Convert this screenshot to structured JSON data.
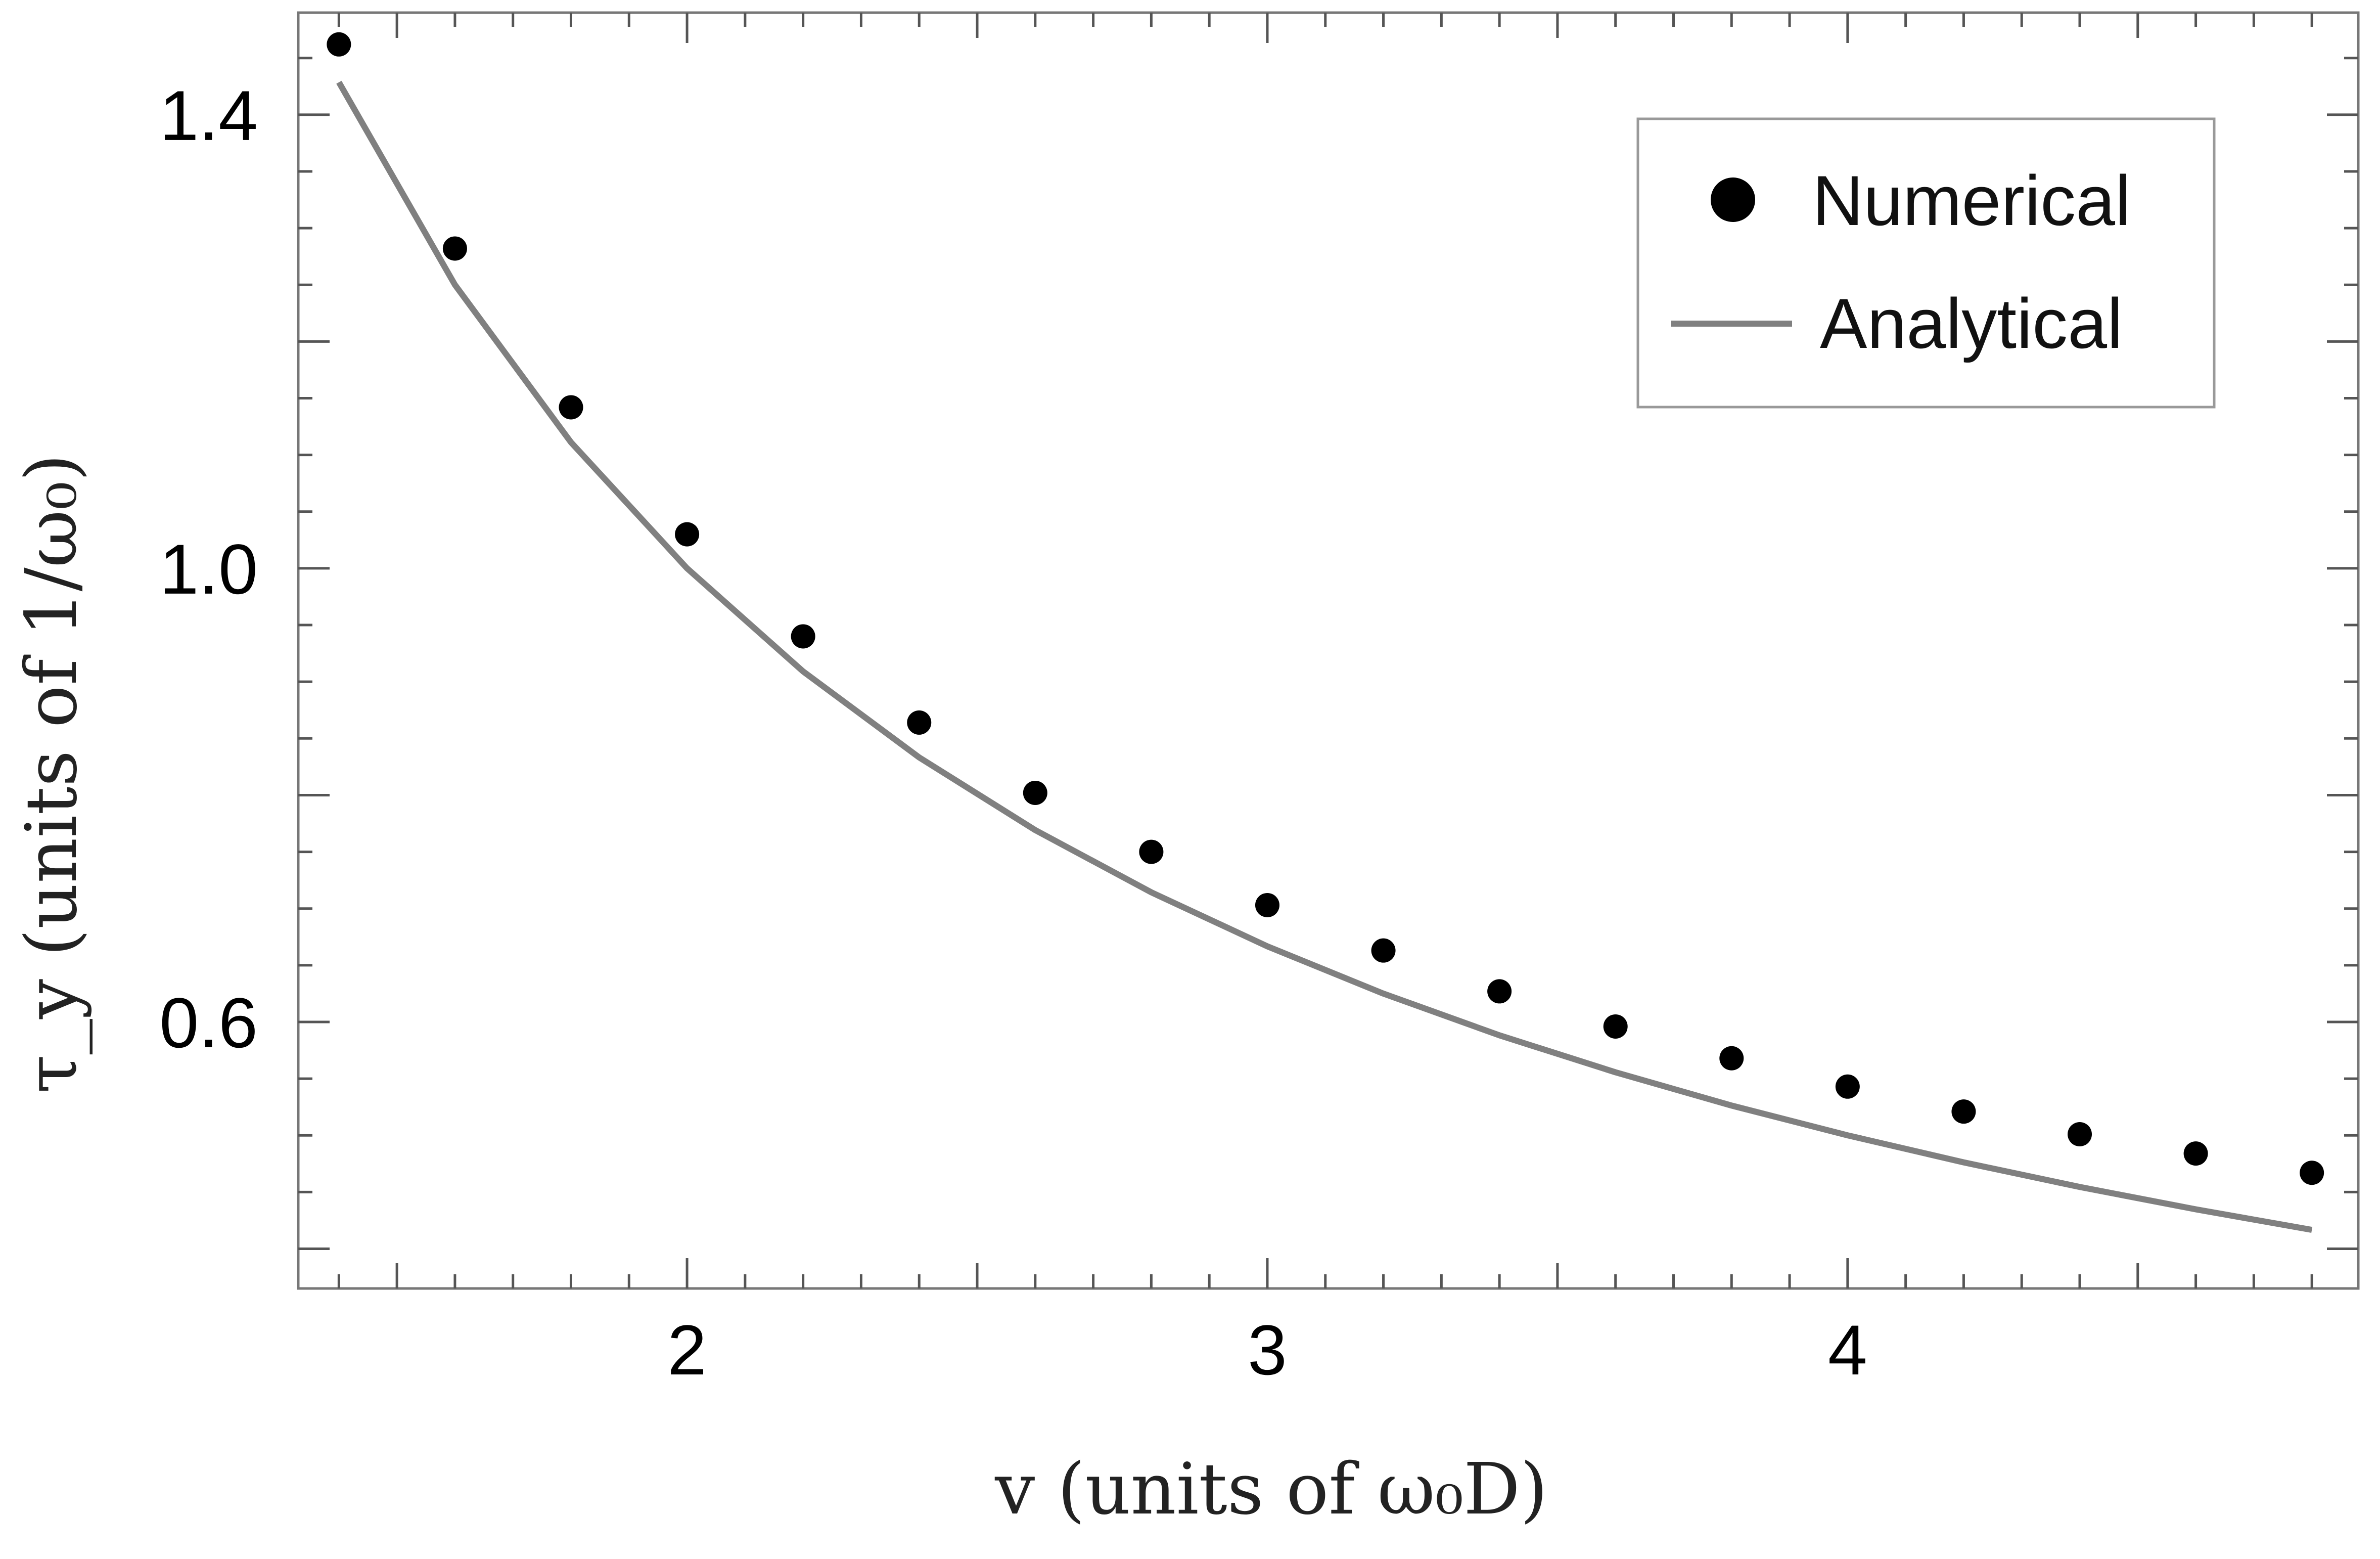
{
  "chart_data": {
    "type": "scatter",
    "xlabel": "v (units of ω₀D)",
    "ylabel": "τ_y (units of 1/ω₀)",
    "xlim": [
      1.33,
      4.88
    ],
    "ylim": [
      0.365,
      1.49
    ],
    "x_ticks": [
      {
        "value": 2,
        "label": "2"
      },
      {
        "value": 3,
        "label": "3"
      },
      {
        "value": 4,
        "label": "4"
      }
    ],
    "y_ticks": [
      {
        "value": 0.6,
        "label": "0.6"
      },
      {
        "value": 1.0,
        "label": "1.0"
      },
      {
        "value": 1.4,
        "label": "1.4"
      }
    ],
    "grid": false,
    "legend_position": "top-right",
    "series": [
      {
        "name": "Numerical",
        "kind": "points",
        "color": "#000000",
        "x": [
          1.4,
          1.6,
          1.8,
          2.0,
          2.2,
          2.4,
          2.6,
          2.8,
          3.0,
          3.2,
          3.4,
          3.6,
          3.8,
          4.0,
          4.2,
          4.4,
          4.6,
          4.8
        ],
        "y": [
          1.462,
          1.282,
          1.142,
          1.03,
          0.94,
          0.864,
          0.802,
          0.75,
          0.703,
          0.663,
          0.627,
          0.596,
          0.568,
          0.543,
          0.521,
          0.501,
          0.484,
          0.467
        ]
      },
      {
        "name": "Analytical",
        "kind": "line",
        "color": "#808080",
        "x": [
          1.4,
          1.6,
          1.8,
          2.0,
          2.2,
          2.4,
          2.6,
          2.8,
          3.0,
          3.2,
          3.4,
          3.6,
          3.8,
          4.0,
          4.2,
          4.4,
          4.6,
          4.8
        ],
        "y": [
          1.4286,
          1.25,
          1.1111,
          1.0,
          0.9091,
          0.8333,
          0.7692,
          0.7143,
          0.6667,
          0.625,
          0.5882,
          0.5556,
          0.5263,
          0.5,
          0.4762,
          0.4545,
          0.4348,
          0.4167
        ]
      }
    ]
  }
}
